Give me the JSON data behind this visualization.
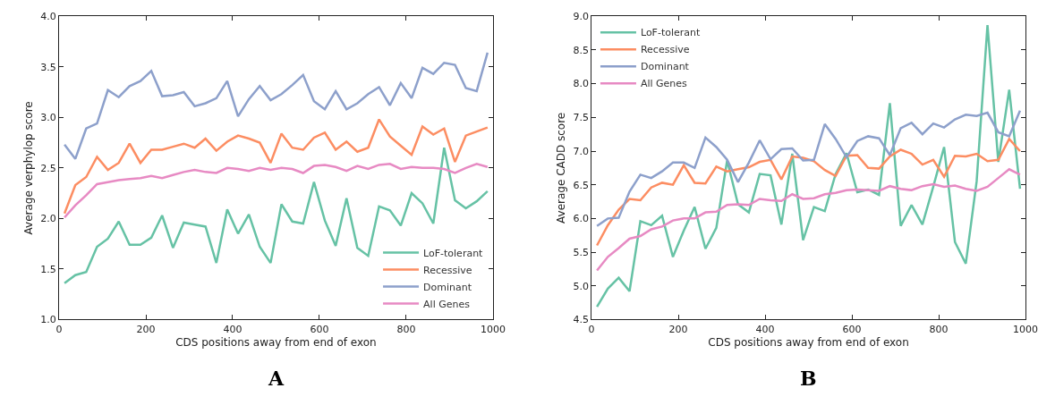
{
  "chart_data": [
    {
      "type": "line",
      "xlabel": "CDS positions away from end of exon",
      "ylabel": "Average verphylop score",
      "annotations": [
        "A"
      ],
      "x": [
        12.5,
        37.5,
        62.5,
        87.5,
        112.5,
        137.5,
        162.5,
        187.5,
        212.5,
        237.5,
        262.5,
        287.5,
        312.5,
        337.5,
        362.5,
        387.5,
        412.5,
        437.5,
        462.5,
        487.5,
        512.5,
        537.5,
        562.5,
        587.5,
        612.5,
        637.5,
        662.5,
        687.5,
        712.5,
        737.5,
        762.5,
        787.5,
        812.5,
        837.5,
        862.5,
        887.5,
        912.5,
        937.5,
        962.5,
        987.5
      ],
      "xlim": [
        0,
        1000
      ],
      "xticks": [
        0,
        200,
        400,
        600,
        800,
        1000
      ],
      "ylim": [
        1.0,
        4.0
      ],
      "yticks": [
        {
          "value": 1.0,
          "label": "1.0"
        },
        {
          "value": 1.5,
          "label": "1.5"
        },
        {
          "value": 2.0,
          "label": "2.0"
        },
        {
          "value": 2.5,
          "label": "2.5"
        },
        {
          "value": 3.0,
          "label": "3.0"
        },
        {
          "value": 3.5,
          "label": "3.5"
        },
        {
          "value": 4.0,
          "label": "4.0"
        }
      ],
      "legend": "bottom right",
      "series": [
        {
          "name": "LoF-tolerant",
          "color": "#66c2a5",
          "values": [
            1.36,
            1.44,
            1.47,
            1.72,
            1.8,
            1.97,
            1.74,
            1.74,
            1.81,
            2.03,
            1.71,
            1.96,
            1.94,
            1.92,
            1.56,
            2.09,
            1.85,
            2.04,
            1.72,
            1.56,
            2.14,
            1.97,
            1.95,
            2.36,
            1.98,
            1.73,
            2.2,
            1.71,
            1.63,
            2.12,
            2.08,
            1.93,
            2.25,
            2.15,
            1.95,
            2.7,
            2.18,
            2.1,
            2.17,
            2.27
          ]
        },
        {
          "name": "Recessive",
          "color": "#fc8d62",
          "values": [
            2.05,
            2.33,
            2.41,
            2.61,
            2.48,
            2.55,
            2.74,
            2.55,
            2.68,
            2.68,
            2.71,
            2.74,
            2.7,
            2.79,
            2.67,
            2.76,
            2.82,
            2.79,
            2.75,
            2.55,
            2.84,
            2.7,
            2.68,
            2.8,
            2.85,
            2.68,
            2.76,
            2.66,
            2.7,
            2.98,
            2.81,
            2.72,
            2.63,
            2.91,
            2.83,
            2.89,
            2.56,
            2.82,
            2.86,
            2.9
          ]
        },
        {
          "name": "Dominant",
          "color": "#8da0cb",
          "values": [
            2.73,
            2.59,
            2.89,
            2.94,
            3.27,
            3.2,
            3.31,
            3.36,
            3.46,
            3.21,
            3.22,
            3.25,
            3.11,
            3.14,
            3.19,
            3.36,
            3.01,
            3.18,
            3.31,
            3.17,
            3.23,
            3.32,
            3.42,
            3.16,
            3.08,
            3.26,
            3.08,
            3.14,
            3.23,
            3.3,
            3.12,
            3.34,
            3.19,
            3.49,
            3.43,
            3.54,
            3.52,
            3.29,
            3.26,
            3.64
          ]
        },
        {
          "name": "All Genes",
          "color": "#e78ac3",
          "values": [
            2.01,
            2.13,
            2.23,
            2.34,
            2.36,
            2.38,
            2.39,
            2.4,
            2.42,
            2.4,
            2.43,
            2.46,
            2.48,
            2.46,
            2.45,
            2.5,
            2.49,
            2.47,
            2.5,
            2.48,
            2.5,
            2.49,
            2.45,
            2.52,
            2.53,
            2.51,
            2.47,
            2.52,
            2.49,
            2.53,
            2.54,
            2.49,
            2.51,
            2.5,
            2.5,
            2.49,
            2.45,
            2.5,
            2.54,
            2.51
          ]
        }
      ]
    },
    {
      "type": "line",
      "xlabel": "CDS positions away from end of exon",
      "ylabel": "Average CADD score",
      "annotations": [
        "B"
      ],
      "x": [
        12.5,
        37.5,
        62.5,
        87.5,
        112.5,
        137.5,
        162.5,
        187.5,
        212.5,
        237.5,
        262.5,
        287.5,
        312.5,
        337.5,
        362.5,
        387.5,
        412.5,
        437.5,
        462.5,
        487.5,
        512.5,
        537.5,
        562.5,
        587.5,
        612.5,
        637.5,
        662.5,
        687.5,
        712.5,
        737.5,
        762.5,
        787.5,
        812.5,
        837.5,
        862.5,
        887.5,
        912.5,
        937.5,
        962.5,
        987.5
      ],
      "xlim": [
        0,
        1000
      ],
      "xticks": [
        0,
        200,
        400,
        600,
        800,
        1000
      ],
      "ylim": [
        4.5,
        9.0
      ],
      "yticks": [
        {
          "value": 4.5,
          "label": "4.5"
        },
        {
          "value": 5.0,
          "label": "5.0"
        },
        {
          "value": 5.5,
          "label": "5.5"
        },
        {
          "value": 6.0,
          "label": "6.0"
        },
        {
          "value": 6.5,
          "label": "6.5"
        },
        {
          "value": 7.0,
          "label": "7.0"
        },
        {
          "value": 7.5,
          "label": "7.5"
        },
        {
          "value": 8.0,
          "label": "8.0"
        },
        {
          "value": 8.5,
          "label": "8.5"
        },
        {
          "value": 9.0,
          "label": "9.0"
        }
      ],
      "legend": "top left",
      "series": [
        {
          "name": "LoF-tolerant",
          "color": "#66c2a5",
          "values": [
            4.69,
            4.96,
            5.12,
            4.92,
            5.96,
            5.9,
            6.04,
            5.43,
            5.82,
            6.17,
            5.55,
            5.86,
            6.86,
            6.21,
            6.09,
            6.66,
            6.64,
            5.91,
            6.96,
            5.68,
            6.17,
            6.11,
            6.66,
            6.97,
            6.39,
            6.43,
            6.35,
            7.71,
            5.89,
            6.2,
            5.91,
            6.47,
            7.06,
            5.65,
            5.33,
            6.55,
            8.87,
            6.84,
            7.91,
            6.44
          ]
        },
        {
          "name": "Recessive",
          "color": "#fc8d62",
          "values": [
            5.6,
            5.9,
            6.13,
            6.29,
            6.27,
            6.46,
            6.53,
            6.5,
            6.79,
            6.53,
            6.52,
            6.77,
            6.7,
            6.73,
            6.76,
            6.84,
            6.87,
            6.58,
            6.92,
            6.9,
            6.85,
            6.72,
            6.63,
            6.93,
            6.94,
            6.75,
            6.74,
            6.92,
            7.02,
            6.96,
            6.8,
            6.87,
            6.62,
            6.93,
            6.92,
            6.96,
            6.85,
            6.87,
            7.18,
            7.0
          ]
        },
        {
          "name": "Dominant",
          "color": "#8da0cb",
          "values": [
            5.89,
            6.0,
            6.01,
            6.4,
            6.65,
            6.6,
            6.7,
            6.83,
            6.83,
            6.75,
            7.2,
            7.06,
            6.87,
            6.54,
            6.83,
            7.16,
            6.88,
            7.03,
            7.04,
            6.86,
            6.87,
            7.4,
            7.18,
            6.91,
            7.15,
            7.22,
            7.19,
            6.94,
            7.34,
            7.42,
            7.25,
            7.41,
            7.35,
            7.47,
            7.54,
            7.52,
            7.57,
            7.28,
            7.22,
            7.6
          ]
        },
        {
          "name": "All Genes",
          "color": "#e78ac3",
          "values": [
            5.23,
            5.43,
            5.56,
            5.7,
            5.74,
            5.84,
            5.88,
            5.97,
            6.0,
            6.0,
            6.09,
            6.1,
            6.2,
            6.21,
            6.2,
            6.29,
            6.27,
            6.26,
            6.36,
            6.29,
            6.3,
            6.36,
            6.38,
            6.42,
            6.43,
            6.42,
            6.41,
            6.48,
            6.44,
            6.42,
            6.48,
            6.51,
            6.47,
            6.49,
            6.44,
            6.41,
            6.47,
            6.6,
            6.73,
            6.65
          ]
        }
      ]
    }
  ]
}
